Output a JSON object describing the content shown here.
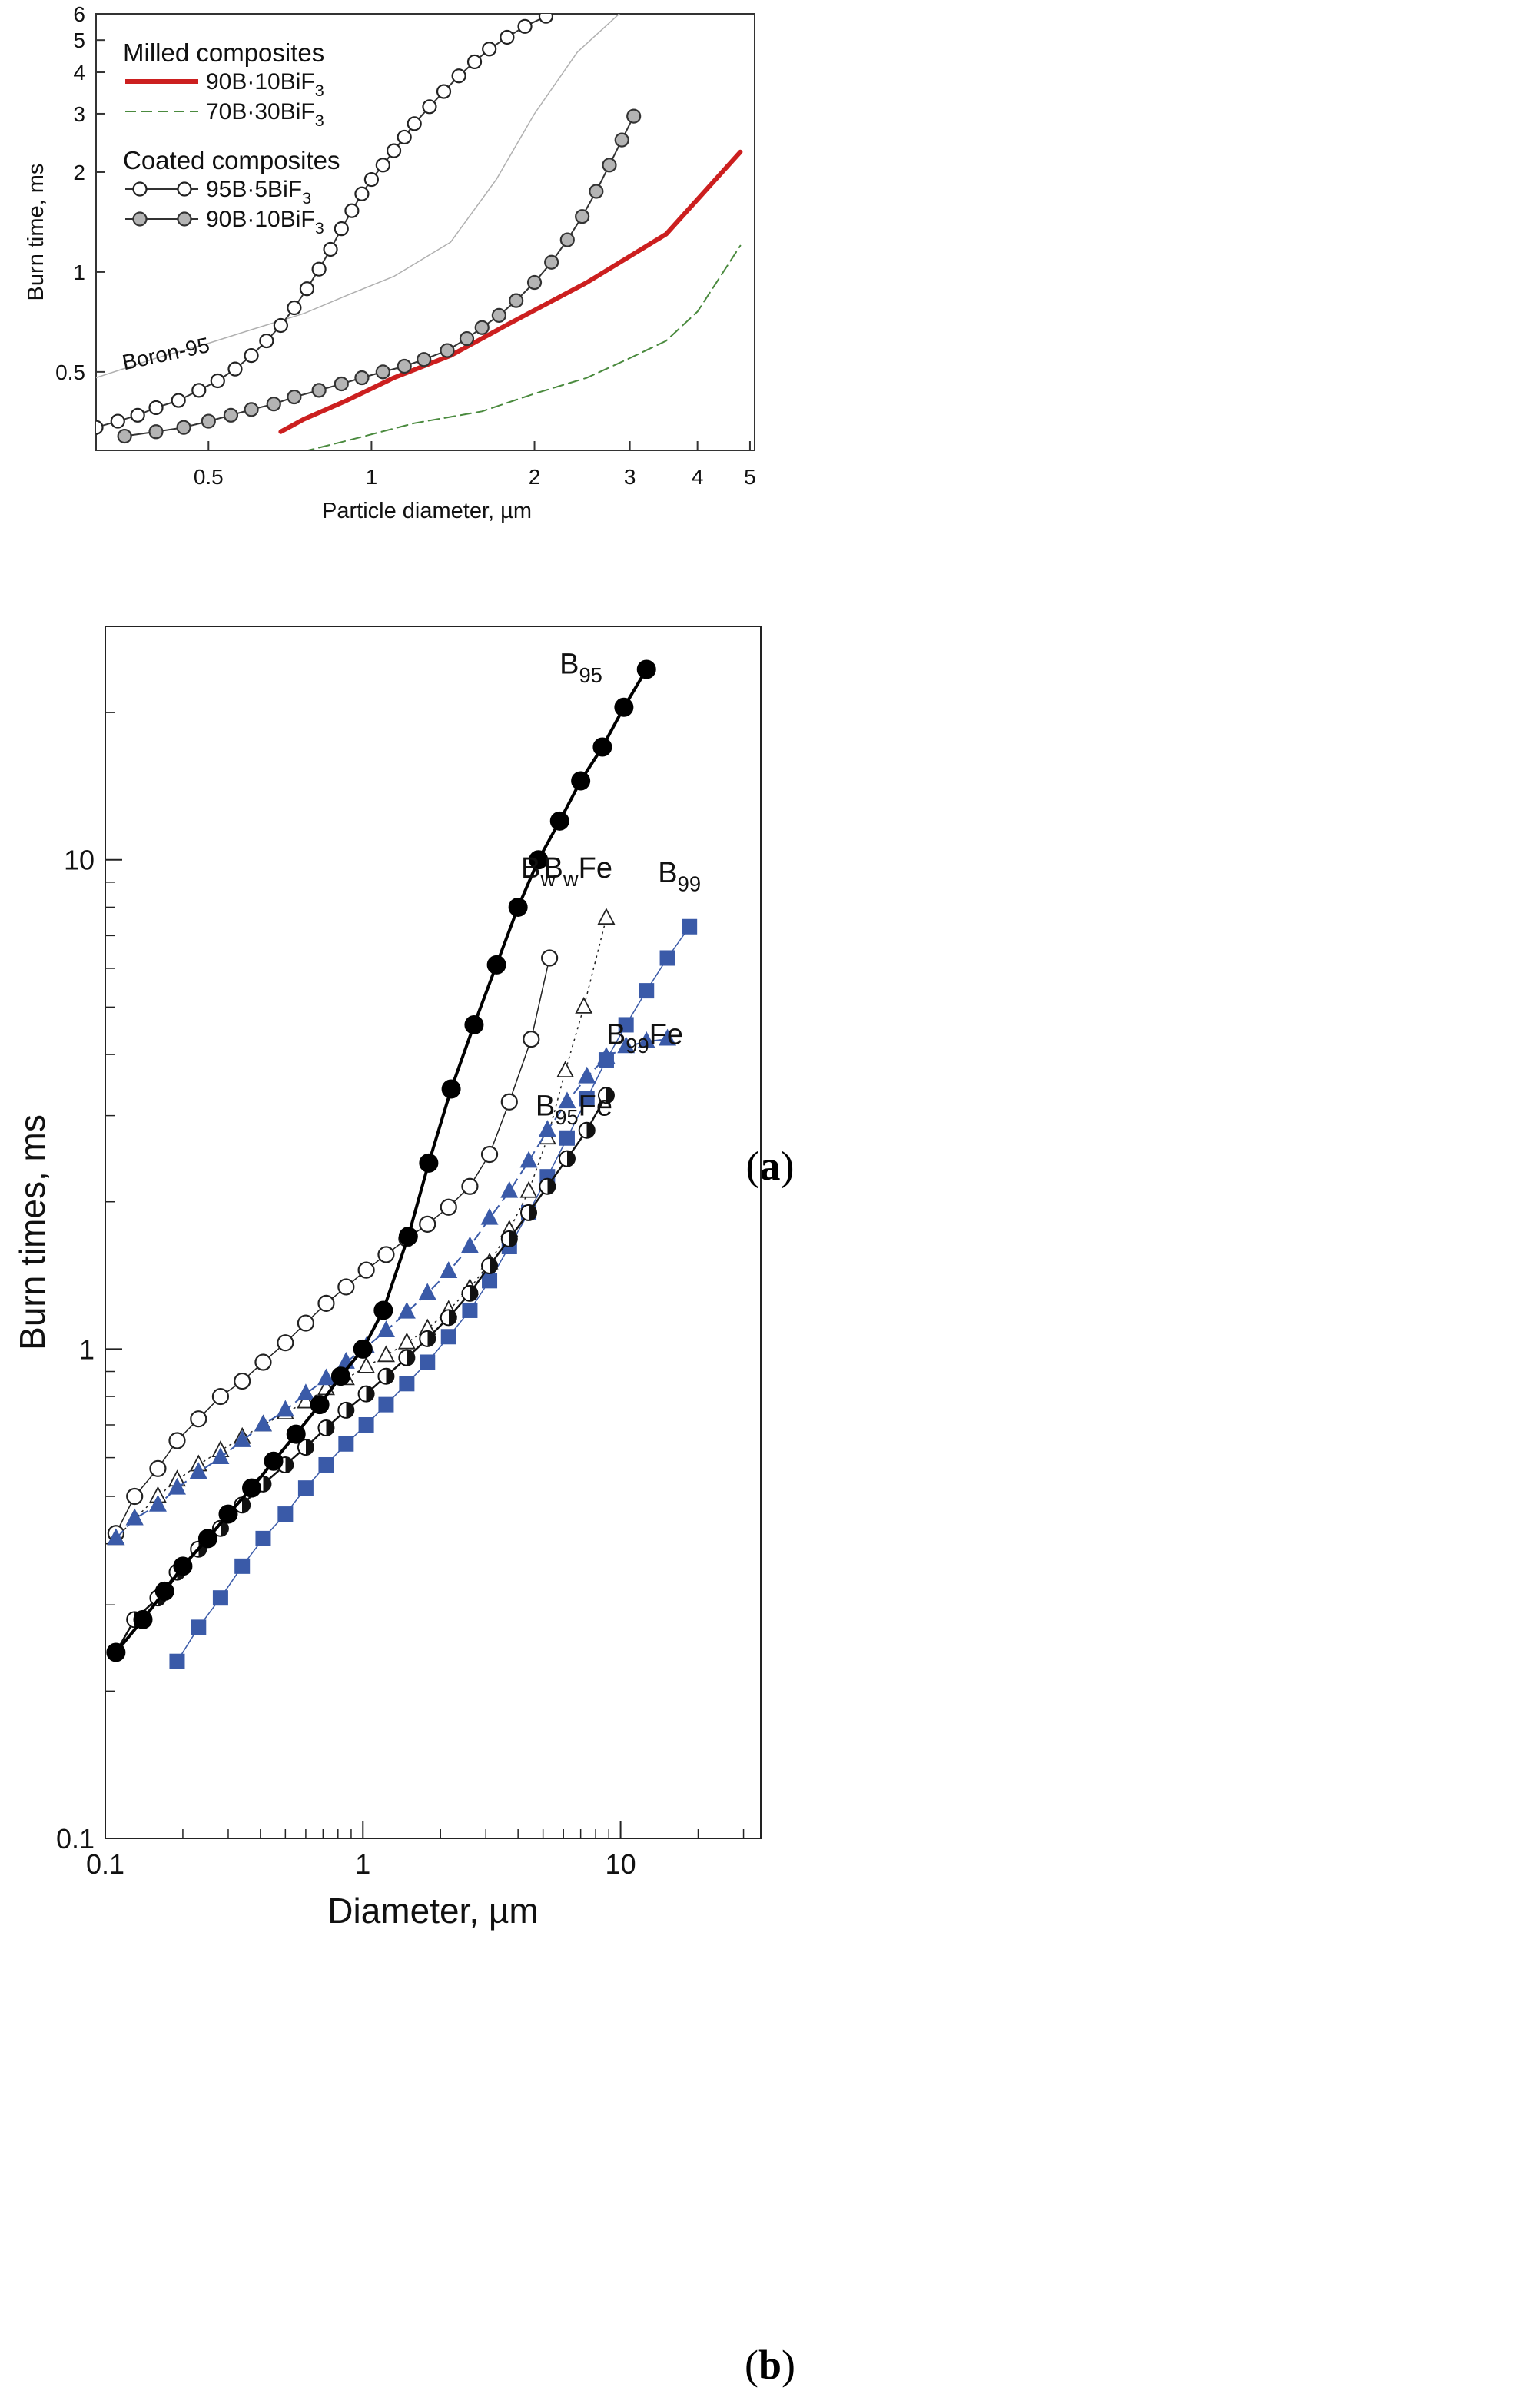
{
  "chart_data": [
    {
      "id": "a",
      "type": "line",
      "panel_label": "(a)",
      "panel_label_letter": "a",
      "xlabel": "Particle diameter, µm",
      "ylabel": "Burn time, ms",
      "xscale": "log",
      "yscale": "log",
      "xlim": [
        0.31,
        5.1
      ],
      "ylim": [
        0.29,
        6
      ],
      "grid": false,
      "x_ticks": [
        {
          "value": 0.5,
          "label": "0.5"
        },
        {
          "value": 1,
          "label": "1"
        },
        {
          "value": 2,
          "label": "2"
        },
        {
          "value": 3,
          "label": "3"
        },
        {
          "value": 4,
          "label": "4"
        },
        {
          "value": 5,
          "label": "5"
        }
      ],
      "y_ticks": [
        {
          "value": 0.5,
          "label": "0.5"
        },
        {
          "value": 1,
          "label": "1"
        },
        {
          "value": 2,
          "label": "2"
        },
        {
          "value": 3,
          "label": "3"
        },
        {
          "value": 4,
          "label": "4"
        },
        {
          "value": 5,
          "label": "5"
        },
        {
          "value": 6,
          "label": "6"
        }
      ],
      "legend_position": "top-left",
      "legend_groups": [
        {
          "title": "Milled composites",
          "entries": [
            {
              "label": "90B·10BiF",
              "sub": "3",
              "series": 0
            },
            {
              "label": "70B·30BiF",
              "sub": "3",
              "series": 1
            }
          ]
        },
        {
          "title": "Coated composites",
          "entries": [
            {
              "label": "95B·5BiF",
              "sub": "3",
              "series": 2
            },
            {
              "label": "90B·10BiF",
              "sub": "3",
              "series": 3
            }
          ]
        }
      ],
      "annotations": [
        {
          "text": "Boron-95",
          "x": 0.325,
          "y": 0.52
        }
      ],
      "series": [
        {
          "name": "Milled 90B·10BiF3",
          "color": "#cc1f1f",
          "style": "solid",
          "width": 6,
          "marker": "none",
          "x": [
            0.68,
            0.75,
            0.9,
            1.1,
            1.4,
            1.8,
            2.5,
            3.5,
            4.8
          ],
          "y": [
            0.33,
            0.36,
            0.41,
            0.48,
            0.56,
            0.7,
            0.93,
            1.3,
            2.3
          ]
        },
        {
          "name": "Milled 70B·30BiF3",
          "color": "#4a8a3e",
          "style": "dashed",
          "width": 2,
          "marker": "none",
          "x": [
            0.7,
            0.9,
            1.2,
            1.6,
            2.0,
            2.5,
            3.0,
            3.5,
            4.0,
            4.8
          ],
          "y": [
            0.28,
            0.31,
            0.35,
            0.38,
            0.43,
            0.48,
            0.55,
            0.62,
            0.76,
            1.2
          ]
        },
        {
          "name": "Coated 95B·5BiF3",
          "color": "#333333",
          "style": "solid",
          "width": 2,
          "marker": "open-circle",
          "x": [
            0.31,
            0.34,
            0.37,
            0.4,
            0.44,
            0.48,
            0.52,
            0.56,
            0.6,
            0.64,
            0.68,
            0.72,
            0.76,
            0.8,
            0.84,
            0.88,
            0.92,
            0.96,
            1.0,
            1.05,
            1.1,
            1.15,
            1.2,
            1.28,
            1.36,
            1.45,
            1.55,
            1.65,
            1.78,
            1.92,
            2.1
          ],
          "y": [
            0.34,
            0.355,
            0.37,
            0.39,
            0.41,
            0.44,
            0.47,
            0.51,
            0.56,
            0.62,
            0.69,
            0.78,
            0.89,
            1.02,
            1.17,
            1.35,
            1.53,
            1.72,
            1.9,
            2.1,
            2.32,
            2.55,
            2.8,
            3.15,
            3.5,
            3.9,
            4.3,
            4.7,
            5.1,
            5.5,
            5.9
          ]
        },
        {
          "name": "Coated 90B·10BiF3",
          "color": "#333333",
          "style": "solid",
          "width": 2,
          "marker": "grey-circle",
          "x": [
            0.35,
            0.4,
            0.45,
            0.5,
            0.55,
            0.6,
            0.66,
            0.72,
            0.8,
            0.88,
            0.96,
            1.05,
            1.15,
            1.25,
            1.38,
            1.5,
            1.6,
            1.72,
            1.85,
            2.0,
            2.15,
            2.3,
            2.45,
            2.6,
            2.75,
            2.9,
            3.05
          ],
          "y": [
            0.32,
            0.33,
            0.34,
            0.355,
            0.37,
            0.385,
            0.4,
            0.42,
            0.44,
            0.46,
            0.48,
            0.5,
            0.52,
            0.545,
            0.58,
            0.63,
            0.68,
            0.74,
            0.82,
            0.93,
            1.07,
            1.25,
            1.47,
            1.75,
            2.1,
            2.5,
            2.95
          ]
        },
        {
          "name": "Boron-95",
          "color": "#b0b0b0",
          "style": "solid",
          "width": 1.5,
          "marker": "none",
          "x": [
            0.31,
            0.4,
            0.5,
            0.6,
            0.75,
            0.9,
            1.1,
            1.4,
            1.7,
            2.0,
            2.4,
            2.9
          ],
          "y": [
            0.48,
            0.55,
            0.61,
            0.67,
            0.75,
            0.85,
            0.97,
            1.23,
            1.9,
            3.0,
            4.6,
            6.1
          ]
        }
      ]
    },
    {
      "id": "b",
      "type": "line",
      "panel_label": "(b)",
      "panel_label_letter": "b",
      "xlabel": "Diameter, µm",
      "ylabel": "Burn times, ms",
      "xscale": "log",
      "yscale": "log",
      "xlim": [
        0.1,
        35
      ],
      "ylim": [
        0.1,
        30
      ],
      "grid": false,
      "x_ticks": [
        {
          "value": 0.1,
          "label": "0.1"
        },
        {
          "value": 1,
          "label": "1"
        },
        {
          "value": 10,
          "label": "10"
        }
      ],
      "y_ticks": [
        {
          "value": 0.1,
          "label": "0.1"
        },
        {
          "value": 1,
          "label": "1"
        },
        {
          "value": 10,
          "label": "10"
        }
      ],
      "series_labels": [
        {
          "base": "B",
          "sub": "95",
          "suffix": "",
          "color": "#111111",
          "x": 8.5,
          "y": 24
        },
        {
          "base": "B",
          "sub": "w",
          "suffix": "",
          "color": "#111111",
          "x": 5.6,
          "y": 9.2
        },
        {
          "base": "B",
          "sub": "w",
          "suffix": "Fe",
          "color": "#111111",
          "x": 9.3,
          "y": 9.2
        },
        {
          "base": "B",
          "sub": "99",
          "suffix": "",
          "color": "#3355aa",
          "x": 20.5,
          "y": 9.0
        },
        {
          "base": "B",
          "sub": "99",
          "suffix": "Fe",
          "color": "#3355aa",
          "x": 17.5,
          "y": 4.2
        },
        {
          "base": "B",
          "sub": "95",
          "suffix": "Fe",
          "color": "#111111",
          "x": 9.3,
          "y": 3.0
        }
      ],
      "series": [
        {
          "name": "B95",
          "color": "#000000",
          "style": "solid",
          "width": 4,
          "marker": "filled-circle",
          "x": [
            0.11,
            0.14,
            0.17,
            0.2,
            0.25,
            0.3,
            0.37,
            0.45,
            0.55,
            0.68,
            0.82,
            1.0,
            1.2,
            1.5,
            1.8,
            2.2,
            2.7,
            3.3,
            4.0,
            4.8,
            5.8,
            7.0,
            8.5,
            10.3,
            12.6
          ],
          "y": [
            0.24,
            0.28,
            0.32,
            0.36,
            0.41,
            0.46,
            0.52,
            0.59,
            0.67,
            0.77,
            0.88,
            1.0,
            1.2,
            1.7,
            2.4,
            3.4,
            4.6,
            6.1,
            8.0,
            10.0,
            12.0,
            14.5,
            17.0,
            20.5,
            24.5
          ]
        },
        {
          "name": "Bw",
          "color": "#222222",
          "style": "solid",
          "width": 1.5,
          "marker": "open-circle",
          "x": [
            0.11,
            0.13,
            0.16,
            0.19,
            0.23,
            0.28,
            0.34,
            0.41,
            0.5,
            0.6,
            0.72,
            0.86,
            1.03,
            1.23,
            1.48,
            1.78,
            2.15,
            2.6,
            3.1,
            3.7,
            4.5,
            5.3
          ],
          "y": [
            0.42,
            0.5,
            0.57,
            0.65,
            0.72,
            0.8,
            0.86,
            0.94,
            1.03,
            1.13,
            1.24,
            1.34,
            1.45,
            1.56,
            1.68,
            1.8,
            1.95,
            2.15,
            2.5,
            3.2,
            4.3,
            6.3
          ]
        },
        {
          "name": "BwFe",
          "color": "#222222",
          "style": "dotted",
          "width": 1.5,
          "marker": "open-triangle",
          "x": [
            0.11,
            0.13,
            0.16,
            0.19,
            0.23,
            0.28,
            0.34,
            0.41,
            0.5,
            0.6,
            0.72,
            0.86,
            1.03,
            1.23,
            1.48,
            1.78,
            2.15,
            2.6,
            3.1,
            3.7,
            4.4,
            5.2,
            6.1,
            7.2,
            8.8
          ],
          "y": [
            0.41,
            0.45,
            0.5,
            0.54,
            0.58,
            0.62,
            0.66,
            0.7,
            0.74,
            0.78,
            0.83,
            0.87,
            0.92,
            0.97,
            1.03,
            1.1,
            1.2,
            1.33,
            1.5,
            1.75,
            2.1,
            2.7,
            3.7,
            5.0,
            7.6
          ]
        },
        {
          "name": "B99",
          "color": "#3a5aa8",
          "style": "solid",
          "width": 1.5,
          "marker": "filled-square",
          "x": [
            0.19,
            0.23,
            0.28,
            0.34,
            0.41,
            0.5,
            0.6,
            0.72,
            0.86,
            1.03,
            1.23,
            1.48,
            1.78,
            2.15,
            2.6,
            3.1,
            3.7,
            4.4,
            5.2,
            6.2,
            7.4,
            8.8,
            10.5,
            12.6,
            15.2,
            18.5
          ],
          "y": [
            0.23,
            0.27,
            0.31,
            0.36,
            0.41,
            0.46,
            0.52,
            0.58,
            0.64,
            0.7,
            0.77,
            0.85,
            0.94,
            1.06,
            1.2,
            1.38,
            1.62,
            1.9,
            2.25,
            2.7,
            3.25,
            3.9,
            4.6,
            5.4,
            6.3,
            7.3
          ]
        },
        {
          "name": "B99Fe",
          "color": "#3a5aa8",
          "style": "dashed",
          "width": 2,
          "marker": "filled-triangle",
          "x": [
            0.11,
            0.13,
            0.16,
            0.19,
            0.23,
            0.28,
            0.34,
            0.41,
            0.5,
            0.6,
            0.72,
            0.86,
            1.03,
            1.23,
            1.48,
            1.78,
            2.15,
            2.6,
            3.1,
            3.7,
            4.4,
            5.2,
            6.2,
            7.4,
            8.8,
            10.5,
            12.6,
            15.2
          ],
          "y": [
            0.41,
            0.45,
            0.48,
            0.52,
            0.56,
            0.6,
            0.65,
            0.7,
            0.75,
            0.81,
            0.87,
            0.94,
            1.01,
            1.09,
            1.19,
            1.3,
            1.44,
            1.62,
            1.85,
            2.1,
            2.42,
            2.8,
            3.2,
            3.6,
            3.95,
            4.15,
            4.25,
            4.3
          ]
        },
        {
          "name": "B95Fe",
          "color": "#111111",
          "style": "solid",
          "width": 2.5,
          "marker": "half-circle",
          "x": [
            0.11,
            0.13,
            0.16,
            0.19,
            0.23,
            0.28,
            0.34,
            0.41,
            0.5,
            0.6,
            0.72,
            0.86,
            1.03,
            1.23,
            1.48,
            1.78,
            2.15,
            2.6,
            3.1,
            3.7,
            4.4,
            5.2,
            6.2,
            7.4,
            8.8
          ],
          "y": [
            0.24,
            0.28,
            0.31,
            0.35,
            0.39,
            0.43,
            0.48,
            0.53,
            0.58,
            0.63,
            0.69,
            0.75,
            0.81,
            0.88,
            0.96,
            1.05,
            1.16,
            1.3,
            1.48,
            1.68,
            1.9,
            2.15,
            2.45,
            2.8,
            3.3
          ]
        }
      ]
    }
  ]
}
